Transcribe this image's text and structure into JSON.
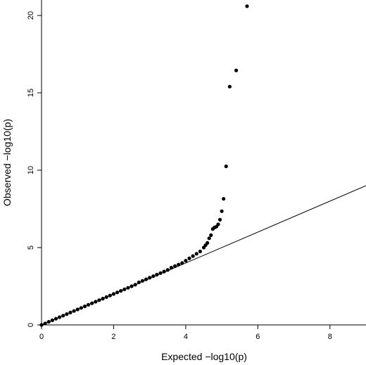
{
  "chart_data": {
    "type": "scatter",
    "title": "",
    "xlabel": "Expected −log10(p)",
    "ylabel": "Observed −log10(p)",
    "xlim": [
      0,
      9
    ],
    "ylim": [
      0,
      21
    ],
    "xticks": [
      0,
      2,
      4,
      6,
      8
    ],
    "yticks": [
      0,
      5,
      10,
      15,
      20
    ],
    "grid": false,
    "reference_line": {
      "description": "y = x",
      "x": [
        0,
        9
      ],
      "y": [
        0,
        9
      ]
    },
    "points": [
      {
        "x": 0.0,
        "y": 0.0
      },
      {
        "x": 0.1,
        "y": 0.1
      },
      {
        "x": 0.2,
        "y": 0.2
      },
      {
        "x": 0.3,
        "y": 0.3
      },
      {
        "x": 0.4,
        "y": 0.4
      },
      {
        "x": 0.5,
        "y": 0.5
      },
      {
        "x": 0.6,
        "y": 0.6
      },
      {
        "x": 0.7,
        "y": 0.7
      },
      {
        "x": 0.8,
        "y": 0.8
      },
      {
        "x": 0.9,
        "y": 0.9
      },
      {
        "x": 1.0,
        "y": 1.0
      },
      {
        "x": 1.1,
        "y": 1.1
      },
      {
        "x": 1.2,
        "y": 1.2
      },
      {
        "x": 1.3,
        "y": 1.3
      },
      {
        "x": 1.4,
        "y": 1.4
      },
      {
        "x": 1.5,
        "y": 1.5
      },
      {
        "x": 1.6,
        "y": 1.6
      },
      {
        "x": 1.7,
        "y": 1.7
      },
      {
        "x": 1.8,
        "y": 1.8
      },
      {
        "x": 1.9,
        "y": 1.9
      },
      {
        "x": 2.0,
        "y": 2.0
      },
      {
        "x": 2.1,
        "y": 2.1
      },
      {
        "x": 2.2,
        "y": 2.2
      },
      {
        "x": 2.3,
        "y": 2.3
      },
      {
        "x": 2.4,
        "y": 2.4
      },
      {
        "x": 2.5,
        "y": 2.5
      },
      {
        "x": 2.6,
        "y": 2.6
      },
      {
        "x": 2.7,
        "y": 2.75
      },
      {
        "x": 2.8,
        "y": 2.85
      },
      {
        "x": 2.9,
        "y": 2.95
      },
      {
        "x": 3.0,
        "y": 3.05
      },
      {
        "x": 3.1,
        "y": 3.15
      },
      {
        "x": 3.2,
        "y": 3.25
      },
      {
        "x": 3.3,
        "y": 3.35
      },
      {
        "x": 3.4,
        "y": 3.45
      },
      {
        "x": 3.5,
        "y": 3.55
      },
      {
        "x": 3.6,
        "y": 3.7
      },
      {
        "x": 3.7,
        "y": 3.8
      },
      {
        "x": 3.8,
        "y": 3.9
      },
      {
        "x": 3.9,
        "y": 4.0
      },
      {
        "x": 4.0,
        "y": 4.15
      },
      {
        "x": 4.1,
        "y": 4.3
      },
      {
        "x": 4.2,
        "y": 4.45
      },
      {
        "x": 4.3,
        "y": 4.6
      },
      {
        "x": 4.4,
        "y": 4.75
      },
      {
        "x": 4.5,
        "y": 5.0
      },
      {
        "x": 4.55,
        "y": 5.15
      },
      {
        "x": 4.6,
        "y": 5.3
      },
      {
        "x": 4.65,
        "y": 5.6
      },
      {
        "x": 4.7,
        "y": 5.8
      },
      {
        "x": 4.75,
        "y": 6.2
      },
      {
        "x": 4.8,
        "y": 6.3
      },
      {
        "x": 4.85,
        "y": 6.35
      },
      {
        "x": 4.9,
        "y": 6.5
      },
      {
        "x": 4.95,
        "y": 6.8
      },
      {
        "x": 5.0,
        "y": 7.35
      },
      {
        "x": 5.05,
        "y": 8.15
      },
      {
        "x": 5.12,
        "y": 10.25
      },
      {
        "x": 5.22,
        "y": 15.4
      },
      {
        "x": 5.4,
        "y": 16.45
      },
      {
        "x": 5.7,
        "y": 20.6
      }
    ]
  }
}
